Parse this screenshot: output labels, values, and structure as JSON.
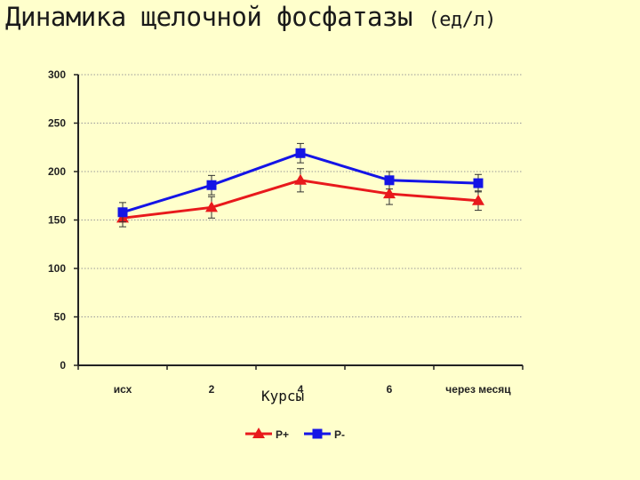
{
  "title_main": "Динамика щелочной фосфатазы",
  "title_unit": "(ед/л)",
  "chart_data": {
    "type": "line",
    "title": "Динамика щелочной фосфатазы (ед/л)",
    "xlabel": "Курсы",
    "ylabel": "",
    "categories": [
      "исх",
      "2",
      "4",
      "6",
      "через месяц"
    ],
    "ylim": [
      0,
      300
    ],
    "yticks": [
      0,
      50,
      100,
      150,
      200,
      250,
      300
    ],
    "grid": true,
    "legend_position": "bottom",
    "series": [
      {
        "name": "P+",
        "color": "#e8191c",
        "marker": "triangle",
        "values": [
          152,
          163,
          191,
          177,
          170
        ],
        "errors": [
          9,
          11,
          12,
          11,
          10
        ]
      },
      {
        "name": "P-",
        "color": "#1414e6",
        "marker": "square",
        "values": [
          158,
          186,
          219,
          191,
          188
        ],
        "errors": [
          10,
          10,
          10,
          9,
          9
        ]
      }
    ]
  }
}
